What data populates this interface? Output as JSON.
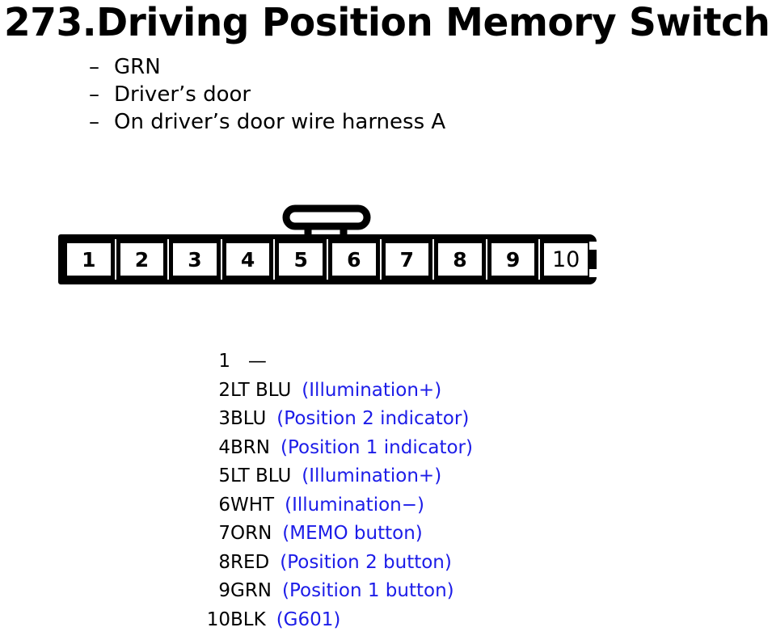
{
  "title": "273.Driving Position Memory Switch",
  "chars": {
    "bullet_dash": "–"
  },
  "notes": [
    "GRN",
    "Driver’s door",
    "On driver’s door wire harness A"
  ],
  "connector": {
    "pins": [
      "1",
      "2",
      "3",
      "4",
      "5",
      "6",
      "7",
      "8",
      "9",
      "10"
    ]
  },
  "pin_table": {
    "rows": [
      {
        "pin": "1",
        "wire": "   —",
        "function": ""
      },
      {
        "pin": "2",
        "wire": "LT BLU",
        "function": "(Illumination+)"
      },
      {
        "pin": "3",
        "wire": "BLU",
        "function": "(Position 2 indicator)"
      },
      {
        "pin": "4",
        "wire": "BRN",
        "function": "(Position 1 indicator)"
      },
      {
        "pin": "5",
        "wire": "LT BLU",
        "function": "(Illumination+)"
      },
      {
        "pin": "6",
        "wire": "WHT",
        "function": "(Illumination−)"
      },
      {
        "pin": "7",
        "wire": "ORN",
        "function": "(MEMO button)"
      },
      {
        "pin": "8",
        "wire": "RED",
        "function": "(Position 2 button)"
      },
      {
        "pin": "9",
        "wire": "GRN",
        "function": "(Position 1 button)"
      },
      {
        "pin": "10",
        "wire": "BLK",
        "function": "(G601)"
      }
    ]
  },
  "colors": {
    "function_text": "#1c1ce8",
    "ink": "#000000"
  }
}
